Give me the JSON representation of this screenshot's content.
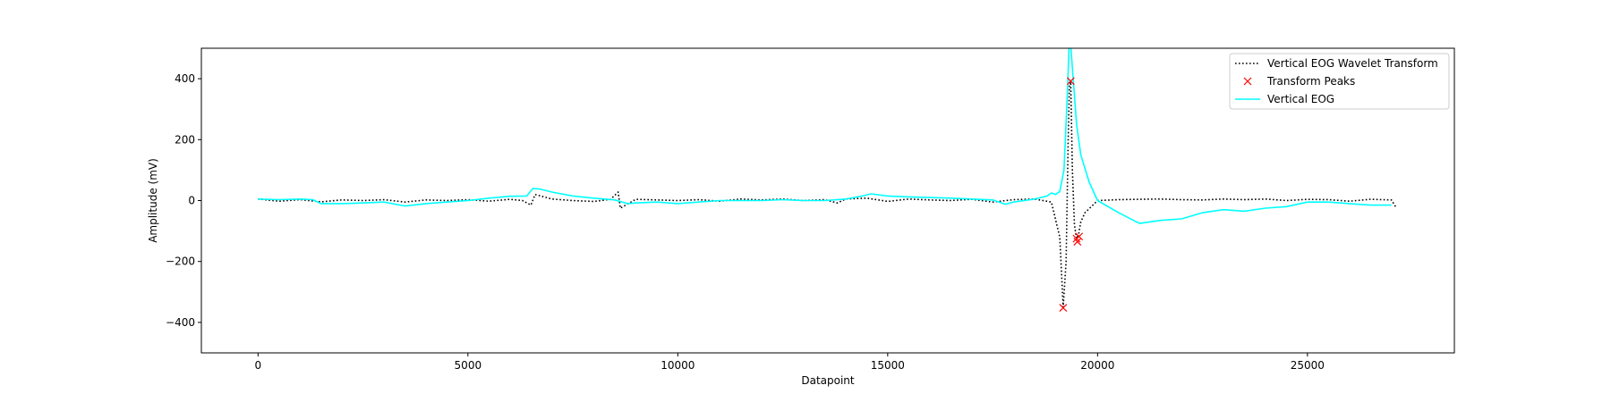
{
  "chart_data": {
    "type": "line",
    "xlabel": "Datapoint",
    "ylabel": "Amplitude (mV)",
    "xlim": [
      -1350,
      28500
    ],
    "ylim": [
      -500,
      500
    ],
    "x_ticks": [
      0,
      5000,
      10000,
      15000,
      20000,
      25000
    ],
    "y_ticks": [
      -400,
      -200,
      0,
      200,
      400
    ],
    "y_tick_labels": [
      "−400",
      "−200",
      "0",
      "200",
      "400"
    ],
    "grid": false,
    "legend_position": "top-right",
    "series": [
      {
        "name": "Vertical EOG Wavelet Transform",
        "style": "dotted",
        "color": "#000000",
        "x": [
          0,
          500,
          1000,
          1500,
          2000,
          2500,
          3000,
          3500,
          4000,
          4500,
          5000,
          5500,
          6000,
          6300,
          6500,
          6600,
          7000,
          7500,
          8000,
          8400,
          8580,
          8630,
          9000,
          9500,
          10000,
          10500,
          11000,
          11500,
          12000,
          12500,
          13000,
          13500,
          13800,
          14000,
          14500,
          15000,
          15500,
          16000,
          16500,
          17000,
          17500,
          18000,
          18500,
          18900,
          19100,
          19180,
          19250,
          19300,
          19330,
          19360,
          19400,
          19450,
          19500,
          19550,
          19600,
          19700,
          19850,
          20000,
          20500,
          21000,
          21500,
          22000,
          22500,
          23000,
          23500,
          24000,
          24500,
          25000,
          25500,
          26000,
          26500,
          27000,
          27100
        ],
        "y": [
          5,
          -2,
          3,
          -4,
          2,
          0,
          3,
          -5,
          2,
          0,
          3,
          -2,
          4,
          0,
          -15,
          20,
          5,
          0,
          -3,
          4,
          28,
          -25,
          4,
          2,
          0,
          3,
          -2,
          5,
          2,
          5,
          0,
          3,
          -8,
          5,
          8,
          -3,
          5,
          2,
          0,
          4,
          -5,
          3,
          5,
          -5,
          -120,
          -350,
          -200,
          200,
          380,
          390,
          100,
          -80,
          -125,
          -110,
          -70,
          -40,
          -20,
          0,
          3,
          4,
          5,
          3,
          2,
          5,
          3,
          5,
          0,
          4,
          3,
          -2,
          4,
          2,
          -20
        ]
      },
      {
        "name": "Transform Peaks",
        "style": "marker-x",
        "color": "#ff0000",
        "x": [
          19180,
          19360,
          19500,
          19520,
          19560
        ],
        "y": [
          -352,
          392,
          -125,
          -135,
          -118
        ]
      },
      {
        "name": "Vertical EOG",
        "style": "solid",
        "color": "#00ffff",
        "x": [
          0,
          500,
          1000,
          1300,
          1500,
          2000,
          2500,
          3000,
          3500,
          4000,
          4500,
          5000,
          5500,
          6000,
          6400,
          6550,
          6700,
          7000,
          7500,
          8000,
          8500,
          8800,
          9000,
          9500,
          10000,
          10500,
          11000,
          11500,
          12000,
          12500,
          13000,
          13500,
          14000,
          14400,
          14600,
          15000,
          15500,
          16000,
          16500,
          17000,
          17500,
          17800,
          18000,
          18500,
          18800,
          18900,
          19000,
          19100,
          19200,
          19280,
          19320,
          19360,
          19420,
          19500,
          19600,
          19800,
          20000,
          20500,
          21000,
          21500,
          22000,
          22500,
          23000,
          23500,
          24000,
          24500,
          25000,
          25500,
          26000,
          26500,
          27000
        ],
        "y": [
          5,
          3,
          5,
          3,
          -10,
          -10,
          -8,
          -5,
          -18,
          -10,
          -5,
          0,
          8,
          14,
          15,
          40,
          38,
          28,
          15,
          8,
          2,
          -10,
          -8,
          -5,
          -10,
          -5,
          0,
          0,
          0,
          3,
          0,
          0,
          5,
          15,
          22,
          15,
          12,
          10,
          8,
          5,
          2,
          -12,
          -5,
          5,
          15,
          25,
          20,
          30,
          100,
          350,
          500,
          510,
          400,
          250,
          150,
          60,
          0,
          -40,
          -75,
          -65,
          -60,
          -40,
          -30,
          -35,
          -25,
          -20,
          -5,
          -5,
          -10,
          -15,
          -15
        ]
      }
    ]
  }
}
